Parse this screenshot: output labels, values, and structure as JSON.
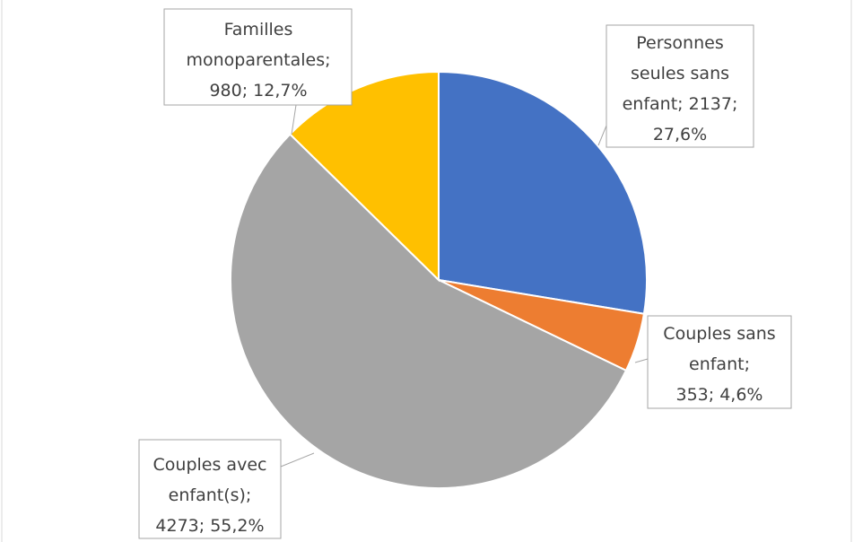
{
  "chart_data": {
    "type": "pie",
    "values": [
      2137,
      353,
      4273,
      980
    ],
    "value_labels": [
      "Personnes seules sans enfant; 2137; 27,6%",
      "Couples sans enfant; 353; 4,6%",
      "Couples avec enfant(s); 4273; 55,2%",
      "Familles monoparentales; 980; 12,7%"
    ],
    "colors": [
      "#4472c4",
      "#ed7d31",
      "#a5a5a5",
      "#ffc000"
    ]
  }
}
